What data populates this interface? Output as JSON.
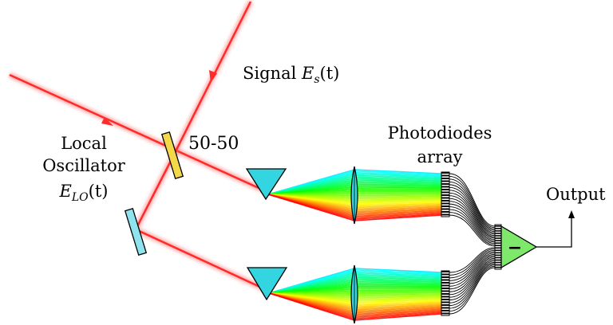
{
  "labels": {
    "signal_text": "Signal",
    "signal_math": "E",
    "signal_sub": "s",
    "signal_arg": "(t)",
    "local_line1": "Local",
    "local_line2": "Oscillator",
    "lo_math": "E",
    "lo_sub": "LO",
    "lo_arg": "(t)",
    "splitter": "50-50",
    "photodiodes_line1": "Photodiodes",
    "photodiodes_line2": "array",
    "output": "Output",
    "amp_sign": "−"
  },
  "colors": {
    "beam": "#ff2a2a",
    "splitter": "#f3d84a",
    "mirror": "#8ee3ee",
    "prism": "#33d6e0",
    "lens": "#33d6e0",
    "amplifier": "#7ee86a"
  }
}
